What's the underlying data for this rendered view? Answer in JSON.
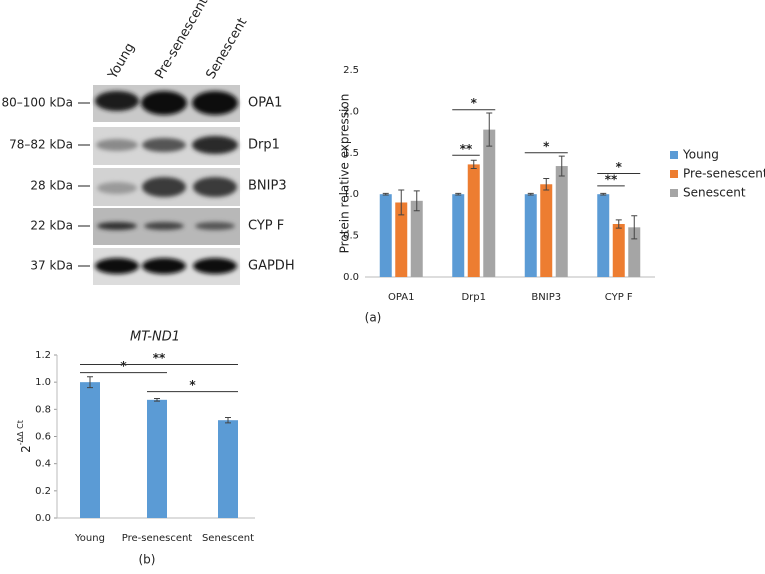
{
  "blot": {
    "lanes": [
      "Young",
      "Pre-senescent",
      "Senescent"
    ],
    "markers": [
      "80–100 kDa",
      "78–82 kDa",
      "28 kDa",
      "22 kDa",
      "37 kDa"
    ],
    "proteins": [
      "OPA1",
      "Drp1",
      "BNIP3",
      "CYP F",
      "GAPDH"
    ]
  },
  "chart_data": [
    {
      "type": "bar",
      "caption": "(a)",
      "ylabel": "Protein relative expression",
      "categories": [
        "OPA1",
        "Drp1",
        "BNIP3",
        "CYP F"
      ],
      "series": [
        {
          "name": "Young",
          "color": "#5b9bd5",
          "values": [
            1.0,
            1.0,
            1.0,
            1.0
          ],
          "errors": [
            0.01,
            0.01,
            0.01,
            0.01
          ]
        },
        {
          "name": "Pre-senescent",
          "color": "#ed7d31",
          "values": [
            0.9,
            1.36,
            1.12,
            0.64
          ],
          "errors": [
            0.15,
            0.05,
            0.07,
            0.05
          ]
        },
        {
          "name": "Senescent",
          "color": "#a5a5a5",
          "values": [
            0.92,
            1.78,
            1.34,
            0.6
          ],
          "errors": [
            0.12,
            0.2,
            0.12,
            0.14
          ]
        }
      ],
      "ylim": [
        0,
        2.5
      ],
      "yticks": [
        {
          "value": 0,
          "label": "0.0"
        },
        {
          "value": 0.5,
          "label": "0.5"
        },
        {
          "value": 1,
          "label": "1.0"
        },
        {
          "value": 1.5,
          "label": "1.5"
        },
        {
          "value": 2,
          "label": "2.0"
        },
        {
          "value": 2.5,
          "label": "2.5"
        }
      ],
      "grid": false,
      "left_axis": false,
      "legend": "right",
      "annotations": [
        {
          "text": "**",
          "category": "Drp1",
          "pair": [
            "Young",
            "Pre-senescent"
          ],
          "y": 1.47
        },
        {
          "text": "*",
          "category": "Drp1",
          "pair": [
            "Young",
            "Senescent"
          ],
          "y": 2.02
        },
        {
          "text": "*",
          "category": "BNIP3",
          "pair": [
            "Young",
            "Senescent"
          ],
          "y": 1.5
        },
        {
          "text": "*",
          "category": "CYP F",
          "pair": [
            "Young",
            "Senescent"
          ],
          "y": 1.25
        },
        {
          "text": "**",
          "category": "CYP F",
          "pair": [
            "Young",
            "Pre-senescent"
          ],
          "y": 1.1
        }
      ]
    },
    {
      "type": "bar",
      "caption": "(b)",
      "title": "MT-ND1",
      "ylabel": {
        "base": "2",
        "exponent": "-ΔΔ Ct"
      },
      "categories": [
        "Young",
        "Pre-senescent",
        "Senescent"
      ],
      "values": [
        1.0,
        0.87,
        0.72
      ],
      "errors": [
        0.04,
        0.01,
        0.02
      ],
      "color": "#5b9bd5",
      "ylim": [
        0,
        1.2
      ],
      "yticks": [
        {
          "value": 0,
          "label": "0.0"
        },
        {
          "value": 0.2,
          "label": "0.2"
        },
        {
          "value": 0.4,
          "label": "0.4"
        },
        {
          "value": 0.6,
          "label": "0.6"
        },
        {
          "value": 0.8,
          "label": "0.8"
        },
        {
          "value": 1,
          "label": "1.0"
        },
        {
          "value": 1.2,
          "label": "1.2"
        }
      ],
      "grid": false,
      "left_axis": true,
      "annotations": [
        {
          "text": "*",
          "pair": [
            "Young",
            "Pre-senescent"
          ],
          "y": 1.07
        },
        {
          "text": "**",
          "pair": [
            "Young",
            "Senescent"
          ],
          "y": 1.13
        },
        {
          "text": "*",
          "pair": [
            "Pre-senescent",
            "Senescent"
          ],
          "y": 0.93
        }
      ]
    }
  ]
}
